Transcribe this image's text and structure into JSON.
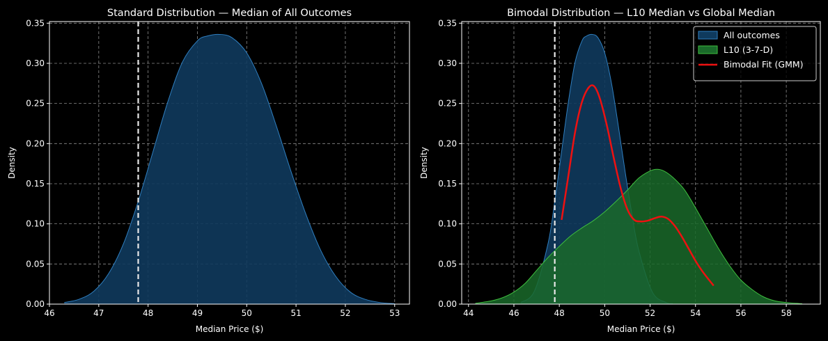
{
  "colors": {
    "background": "#000000",
    "axis": "#ffffff",
    "grid": "#8c8c8c",
    "all_outcomes_fill": "#0f3a5d",
    "all_outcomes_line": "#2f7fc0",
    "l10_fill": "#1a6a2a",
    "l10_line": "#3fbf3f",
    "gmm_line": "#ee1111",
    "median_line": "#e8e8e8"
  },
  "chart_data": [
    {
      "type": "area",
      "title": "Standard Distribution — Median of All Outcomes",
      "xlabel": "Median Price ($)",
      "ylabel": "Density",
      "xlim": [
        46.0,
        53.3
      ],
      "ylim": [
        0.0,
        0.352
      ],
      "xticks": [
        46,
        47,
        48,
        49,
        50,
        51,
        52,
        53
      ],
      "yticks": [
        "0.00",
        "0.05",
        "0.10",
        "0.15",
        "0.20",
        "0.25",
        "0.30",
        "0.35"
      ],
      "grid": true,
      "vline": 47.8,
      "series": [
        {
          "name": "All outcomes",
          "kind": "kde_fill",
          "x": [
            46.3,
            46.6,
            46.9,
            47.2,
            47.5,
            47.8,
            48.1,
            48.4,
            48.7,
            49.0,
            49.2,
            49.45,
            49.7,
            50.0,
            50.3,
            50.6,
            50.9,
            51.2,
            51.5,
            51.8,
            52.1,
            52.4,
            52.7,
            53.0
          ],
          "y": [
            0.002,
            0.006,
            0.016,
            0.038,
            0.075,
            0.128,
            0.19,
            0.252,
            0.302,
            0.328,
            0.334,
            0.336,
            0.332,
            0.313,
            0.275,
            0.222,
            0.165,
            0.112,
            0.067,
            0.035,
            0.015,
            0.006,
            0.002,
            0.0005
          ]
        }
      ]
    },
    {
      "type": "area",
      "title": "Bimodal Distribution — L10 Median vs Global Median",
      "xlabel": "Median Price ($)",
      "ylabel": "Density",
      "xlim": [
        43.7,
        59.5
      ],
      "ylim": [
        0.0,
        0.352
      ],
      "xticks": [
        44,
        46,
        48,
        50,
        52,
        54,
        56,
        58
      ],
      "yticks": [
        "0.00",
        "0.05",
        "0.10",
        "0.15",
        "0.20",
        "0.25",
        "0.30",
        "0.35"
      ],
      "grid": true,
      "vline": 47.8,
      "legend_position": "top-right",
      "series": [
        {
          "name": "All outcomes",
          "kind": "kde_fill",
          "x": [
            46.3,
            46.9,
            47.5,
            47.8,
            48.1,
            48.4,
            48.7,
            49.0,
            49.2,
            49.45,
            49.7,
            50.0,
            50.3,
            50.6,
            50.9,
            51.2,
            51.5,
            52.1,
            52.7,
            53.0
          ],
          "y": [
            0.002,
            0.016,
            0.075,
            0.128,
            0.19,
            0.252,
            0.302,
            0.328,
            0.334,
            0.336,
            0.332,
            0.313,
            0.275,
            0.222,
            0.165,
            0.112,
            0.067,
            0.015,
            0.002,
            0.0005
          ]
        },
        {
          "name": "L10 (3-7-D)",
          "kind": "kde_fill",
          "x": [
            44.3,
            45.0,
            45.5,
            46.0,
            46.5,
            47.0,
            47.5,
            48.0,
            48.5,
            49.0,
            49.5,
            50.0,
            50.5,
            51.0,
            51.5,
            52.0,
            52.3,
            52.6,
            53.0,
            53.5,
            54.0,
            54.5,
            55.0,
            55.5,
            56.0,
            56.5,
            57.0,
            57.5,
            58.0,
            58.7
          ],
          "y": [
            0.001,
            0.004,
            0.008,
            0.015,
            0.026,
            0.042,
            0.058,
            0.072,
            0.085,
            0.095,
            0.104,
            0.115,
            0.128,
            0.142,
            0.157,
            0.166,
            0.168,
            0.166,
            0.158,
            0.143,
            0.12,
            0.095,
            0.07,
            0.048,
            0.03,
            0.018,
            0.009,
            0.004,
            0.002,
            0.0005
          ]
        },
        {
          "name": "Bimodal Fit (GMM)",
          "kind": "line",
          "x": [
            48.1,
            48.4,
            48.7,
            49.0,
            49.3,
            49.55,
            49.8,
            50.1,
            50.4,
            50.7,
            51.0,
            51.3,
            51.6,
            51.9,
            52.2,
            52.5,
            52.8,
            53.1,
            53.4,
            53.7,
            54.0,
            54.3,
            54.6,
            54.8
          ],
          "y": [
            0.105,
            0.16,
            0.215,
            0.252,
            0.27,
            0.271,
            0.255,
            0.222,
            0.182,
            0.145,
            0.118,
            0.105,
            0.103,
            0.104,
            0.107,
            0.109,
            0.106,
            0.097,
            0.084,
            0.069,
            0.054,
            0.041,
            0.03,
            0.023
          ]
        }
      ]
    }
  ]
}
